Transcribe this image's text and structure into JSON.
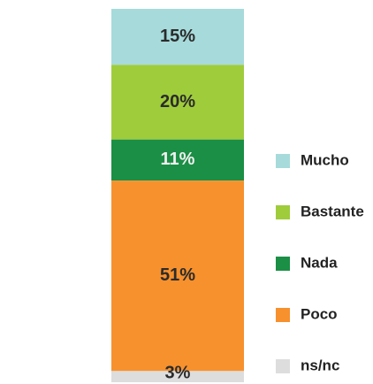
{
  "chart_data": {
    "type": "stacked-bar",
    "ylim": [
      0,
      100
    ],
    "series": [
      {
        "name": "Mucho",
        "color": "#a7dadb",
        "values": [
          15
        ],
        "value_labels": [
          "15%"
        ]
      },
      {
        "name": "Bastante",
        "color": "#9fcc3b",
        "values": [
          20
        ],
        "value_labels": [
          "20%"
        ]
      },
      {
        "name": "Nada",
        "color": "#1a8f45",
        "values": [
          11
        ],
        "value_labels": [
          "11%"
        ]
      },
      {
        "name": "Poco",
        "color": "#f7912d",
        "values": [
          51
        ],
        "value_labels": [
          "51%"
        ]
      },
      {
        "name": "ns/nc",
        "color": "#dddddd",
        "values": [
          3
        ],
        "value_labels": [
          "3%"
        ]
      }
    ]
  }
}
